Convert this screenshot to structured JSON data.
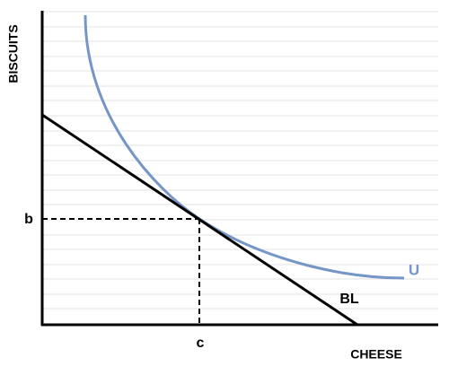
{
  "diagram": {
    "y_axis_label": "BISCUITS",
    "x_axis_label": "CHEESE",
    "y_point_label": "b",
    "x_point_label": "c",
    "curve_label": "U",
    "line_label": "BL"
  }
}
